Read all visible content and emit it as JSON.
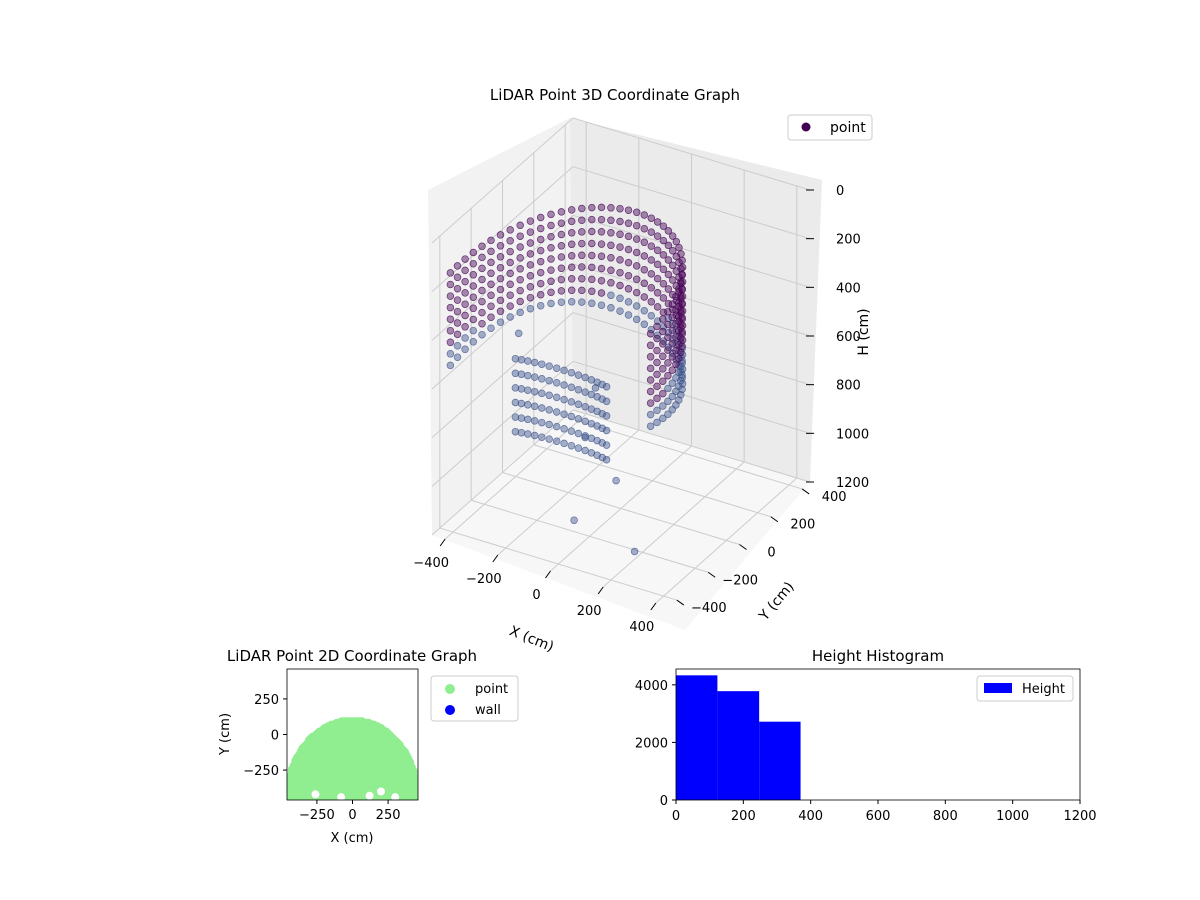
{
  "colors": {
    "viridis_dark": "#440154",
    "viridis_blue": "#3b528b",
    "point_2d": "#90ee90",
    "wall_2d": "#0000ff",
    "hist_bar": "#0000ff",
    "pane_light": "#f2f2f2",
    "pane_mid": "#e6e6e6",
    "grid": "#cccccc"
  },
  "chart_data": [
    {
      "type": "scatter",
      "id": "lidar-3d",
      "title": "LiDAR Point 3D Coordinate Graph",
      "xlabel": "X (cm)",
      "ylabel": "Y (cm)",
      "zlabel": "H (cm)",
      "xlim": [
        -450,
        450
      ],
      "ylim": [
        -450,
        450
      ],
      "zlim": [
        0,
        1200
      ],
      "z_inverted": true,
      "x_ticks": [
        "-400",
        "-200",
        "0",
        "200",
        "400"
      ],
      "y_ticks": [
        "-400",
        "-200",
        "0",
        "200",
        "400"
      ],
      "z_ticks": [
        "0",
        "200",
        "400",
        "600",
        "800",
        "1000",
        "1200"
      ],
      "legend": {
        "entries": [
          "point"
        ],
        "position": "upper-right"
      },
      "colormap": "viridis",
      "grid": true,
      "series": [
        {
          "name": "point",
          "shape": "dome-ring",
          "radius": 380,
          "y_range": [
            -450,
            100
          ],
          "height_top": 40,
          "height_bottom": 480,
          "outliers": [
            {
              "x": -460,
              "y": 120,
              "h": 700
            },
            {
              "x": 60,
              "y": -330,
              "h": 700
            },
            {
              "x": 130,
              "y": -250,
              "h": 900
            },
            {
              "x": 60,
              "y": -400,
              "h": 1000
            },
            {
              "x": 230,
              "y": -300,
              "h": 1130
            },
            {
              "x": 40,
              "y": -230,
              "h": 560
            }
          ]
        }
      ]
    },
    {
      "type": "scatter",
      "id": "lidar-2d",
      "title": "LiDAR Point 2D Coordinate Graph",
      "xlabel": "X (cm)",
      "ylabel": "Y (cm)",
      "xlim": [
        -460,
        460
      ],
      "ylim": [
        -460,
        460
      ],
      "x_ticks": [
        "−250",
        "0",
        "250"
      ],
      "y_ticks": [
        "250",
        "0",
        "−250"
      ],
      "legend": {
        "entries": [
          "point",
          "wall"
        ],
        "position": "outside-right"
      },
      "series": [
        {
          "name": "point",
          "color": "#90ee90",
          "region": "half-disk",
          "center_y": -460,
          "radius": 460
        },
        {
          "name": "wall",
          "color": "#0000ff",
          "region": "none"
        }
      ]
    },
    {
      "type": "bar",
      "id": "height-histogram",
      "title": "Height Histogram",
      "xlim": [
        0,
        1200
      ],
      "ylim": [
        0,
        4550
      ],
      "x_ticks": [
        "0",
        "200",
        "400",
        "600",
        "800",
        "1000",
        "1200"
      ],
      "y_ticks": [
        "0",
        "2000",
        "4000"
      ],
      "legend": {
        "entries": [
          "Height"
        ],
        "position": "upper-right"
      },
      "bins": [
        {
          "start": 0,
          "end": 123,
          "count": 4330
        },
        {
          "start": 123,
          "end": 247,
          "count": 3780
        },
        {
          "start": 247,
          "end": 370,
          "count": 2720
        }
      ]
    }
  ]
}
